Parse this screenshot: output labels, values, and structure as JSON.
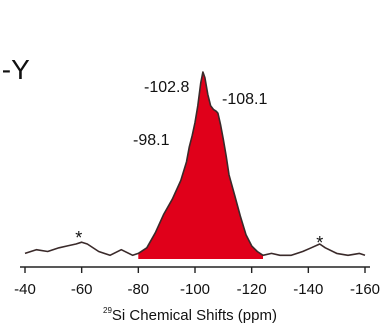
{
  "panel_label": "I-Y",
  "chart_data": {
    "type": "line",
    "xlabel_sup": "29",
    "xlabel": "Si Chemical Shifts (ppm)",
    "xlim": [
      -40,
      -160
    ],
    "xticks": [
      -40,
      -60,
      -80,
      -100,
      -120,
      -140,
      -160
    ],
    "xtick_labels": [
      "-40",
      "-60",
      "-80",
      "-100",
      "-120",
      "-140",
      "-160"
    ],
    "grid": false,
    "fill_color": "#e0001a",
    "line_color": "#3a2a2a",
    "fill_range": [
      -80,
      -124
    ],
    "peak_labels": [
      {
        "text": "-102.8",
        "x": -102.8
      },
      {
        "text": "-108.1",
        "x": -108.1
      },
      {
        "text": "-98.1",
        "x": -98.1
      }
    ],
    "sideband_markers": [
      {
        "text": "*",
        "x": -59
      },
      {
        "text": "*",
        "x": -144
      }
    ],
    "x": [
      -40,
      -44,
      -48,
      -52,
      -55,
      -58,
      -60,
      -62,
      -66,
      -70,
      -74,
      -78,
      -80,
      -83,
      -86,
      -89,
      -92,
      -95,
      -97,
      -98,
      -99,
      -100,
      -101,
      -102,
      -102.8,
      -103.5,
      -104.5,
      -105.5,
      -106.5,
      -107.5,
      -108.1,
      -109,
      -110,
      -111,
      -112,
      -114,
      -116,
      -118,
      -120,
      -122,
      -124,
      -127,
      -130,
      -134,
      -138,
      -141,
      -144,
      -146,
      -150,
      -154,
      -158,
      -160
    ],
    "y": [
      0.03,
      0.05,
      0.04,
      0.06,
      0.07,
      0.08,
      0.09,
      0.08,
      0.04,
      0.02,
      0.05,
      0.02,
      0.03,
      0.06,
      0.14,
      0.24,
      0.32,
      0.42,
      0.52,
      0.6,
      0.66,
      0.73,
      0.82,
      0.94,
      1.0,
      0.97,
      0.88,
      0.82,
      0.8,
      0.79,
      0.78,
      0.72,
      0.64,
      0.55,
      0.45,
      0.34,
      0.23,
      0.13,
      0.07,
      0.04,
      0.02,
      0.03,
      0.02,
      0.02,
      0.04,
      0.06,
      0.08,
      0.06,
      0.03,
      0.02,
      0.03,
      0.02
    ]
  }
}
